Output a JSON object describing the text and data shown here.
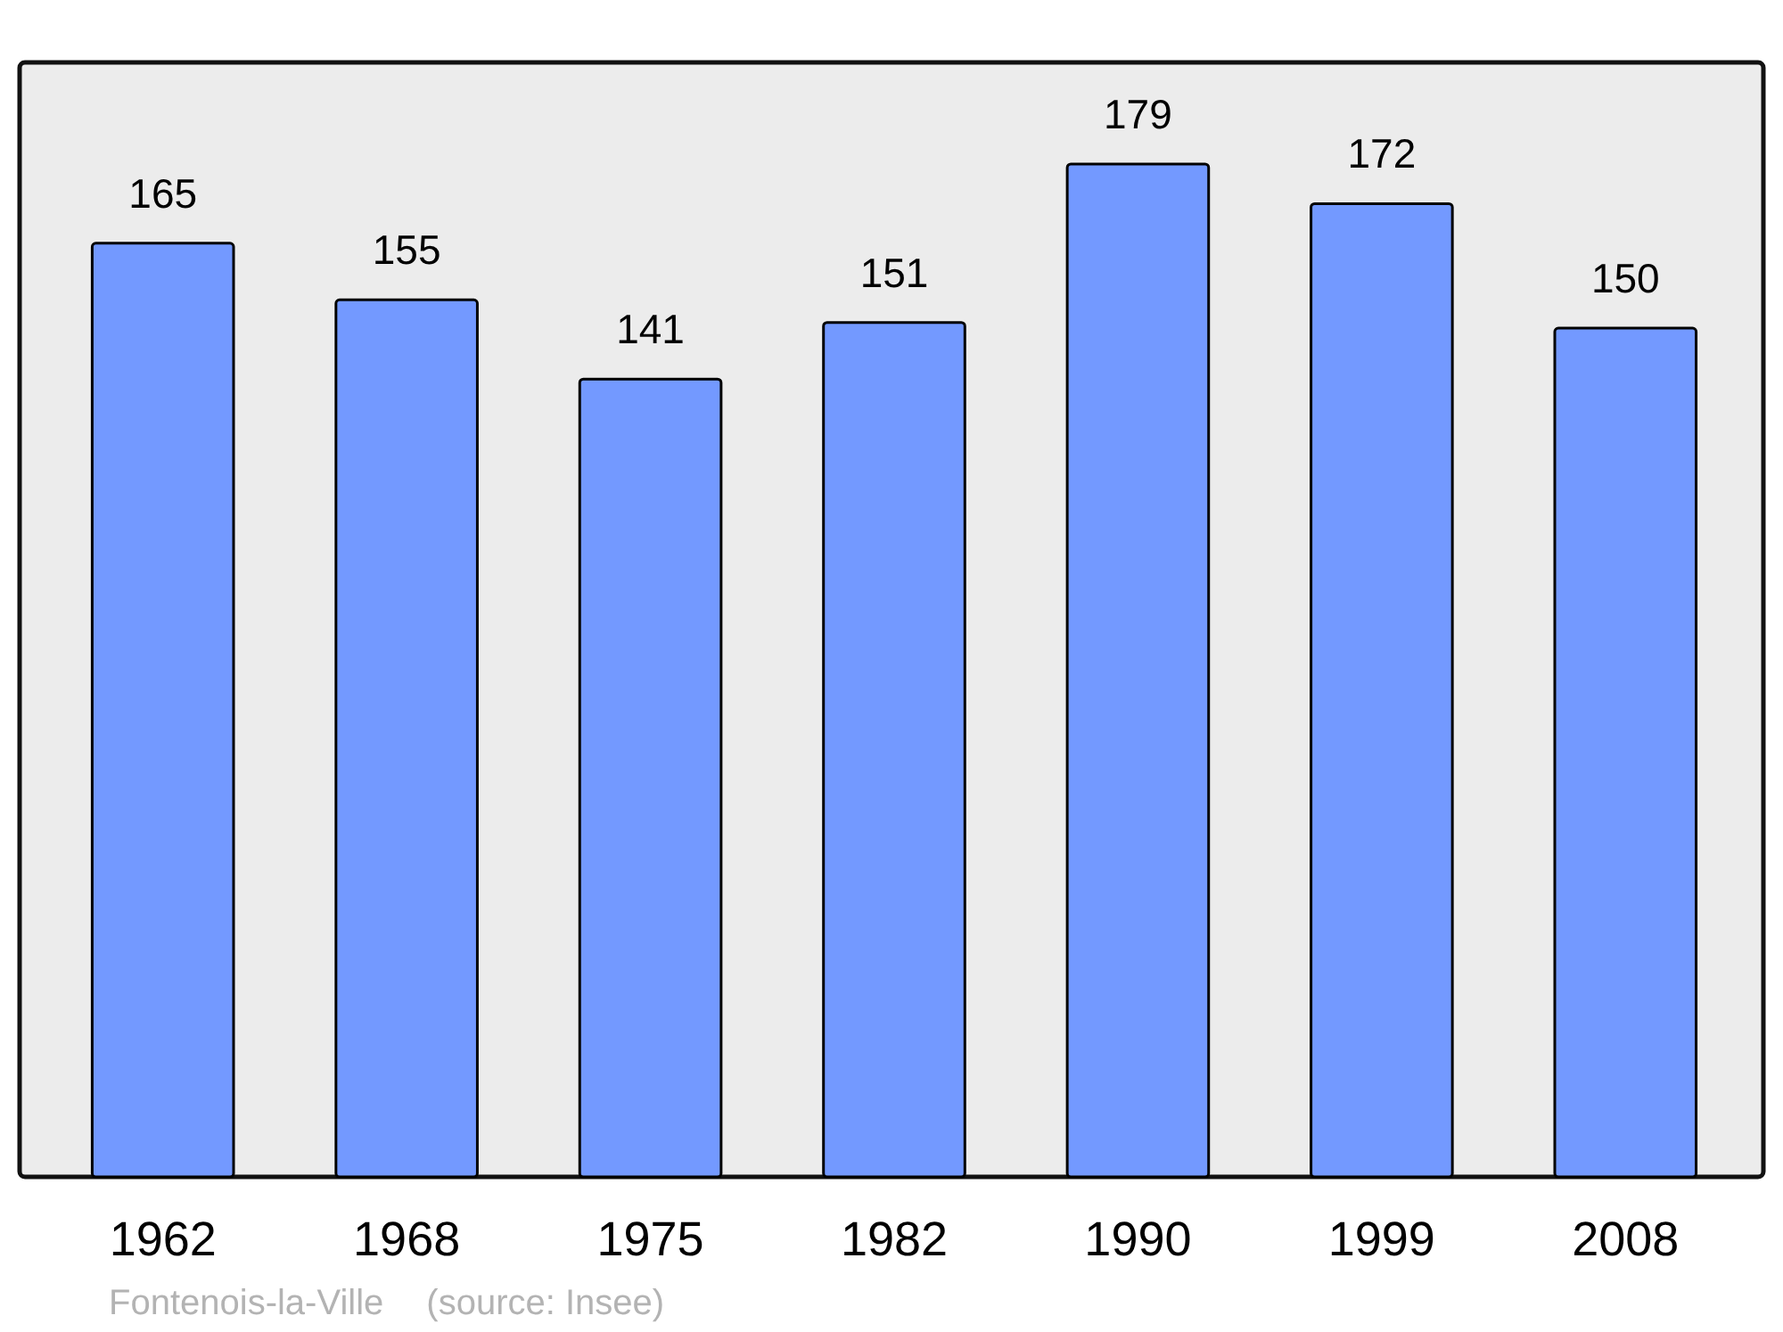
{
  "chart_data": {
    "type": "bar",
    "categories": [
      "1962",
      "1968",
      "1975",
      "1982",
      "1990",
      "1999",
      "2008"
    ],
    "values": [
      165,
      155,
      141,
      151,
      179,
      172,
      150
    ],
    "color": "#7399ff",
    "data_labels": true,
    "annotations": [
      "Fontenois-la-Ville",
      "(source: Insee)"
    ]
  }
}
